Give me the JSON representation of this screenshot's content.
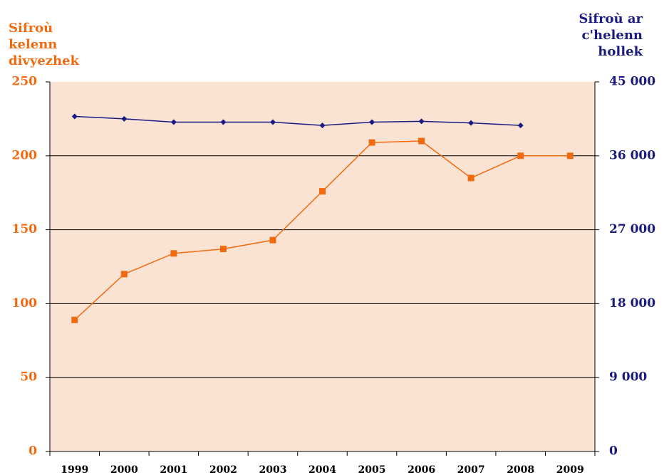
{
  "chart_data": {
    "type": "line",
    "y_label": [
      "Sifroù",
      "kelenn",
      "divyezhek"
    ],
    "y2_label": [
      "Sifroù ar",
      "c'helenn",
      "hollek"
    ],
    "categories": [
      "1999",
      "2000",
      "2001",
      "2002",
      "2003",
      "2004",
      "2005",
      "2006",
      "2007",
      "2008",
      "2009"
    ],
    "series": [
      {
        "color": "#f26a10",
        "marker": "square",
        "values": [
          89,
          120,
          134,
          137,
          143,
          176,
          209,
          210,
          185,
          200,
          200
        ]
      },
      {
        "color": "#1a1a80",
        "marker": "diamond",
        "axis": "y2",
        "values": [
          40800,
          40500,
          40100,
          40100,
          40100,
          39700,
          40100,
          40200,
          40000,
          39700,
          null
        ]
      }
    ],
    "ylim": [
      0,
      250
    ],
    "yticks": [
      0,
      50,
      100,
      150,
      200,
      250
    ],
    "y2lim": [
      0,
      45000
    ],
    "y2ticks": [
      {
        "value": 0,
        "label": "0"
      },
      {
        "value": 9000,
        "label": "9 000"
      },
      {
        "value": 18000,
        "label": "18 000"
      },
      {
        "value": 27000,
        "label": "27 000"
      },
      {
        "value": 36000,
        "label": "36 000"
      },
      {
        "value": 45000,
        "label": "45 000"
      }
    ],
    "grid": true,
    "background": "#fbe3d3"
  }
}
